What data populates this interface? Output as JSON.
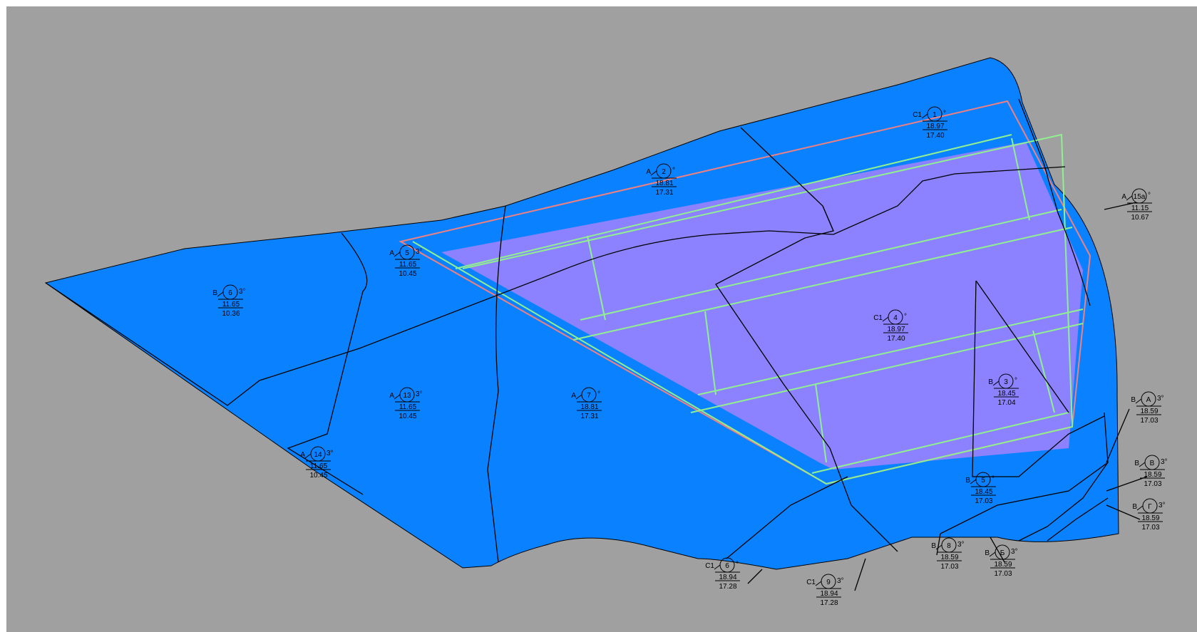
{
  "colors": {
    "background": "#a0a0a0",
    "plot_fill": "#0a82ff",
    "building_fill": "#8c82ff",
    "boundary_red": "#f08080",
    "offset_green": "#90f090",
    "line": "#000000"
  },
  "labels": [
    {
      "id": "1",
      "prefix": "С1",
      "suffix": "°",
      "elev_top": "18.97",
      "elev_bottom": "17.40"
    },
    {
      "id": "2",
      "prefix": "А",
      "suffix": "°",
      "elev_top": "18.81",
      "elev_bottom": "17.31"
    },
    {
      "id": "5",
      "prefix": "А",
      "suffix": "3°",
      "elev_top": "11.65",
      "elev_bottom": "10.45"
    },
    {
      "id": "6",
      "prefix": "В",
      "suffix": "3°",
      "elev_top": "11.65",
      "elev_bottom": "10.36"
    },
    {
      "id": "15а",
      "prefix": "А",
      "suffix": "°",
      "elev_top": "11.15",
      "elev_bottom": "10.67"
    },
    {
      "id": "4",
      "prefix": "С1",
      "suffix": "°",
      "elev_top": "18.97",
      "elev_bottom": "17.40"
    },
    {
      "id": "3",
      "prefix": "В",
      "suffix": "°",
      "elev_top": "18.45",
      "elev_bottom": "17.04"
    },
    {
      "id": "13",
      "prefix": "А",
      "suffix": "3°",
      "elev_top": "11.65",
      "elev_bottom": "10.45"
    },
    {
      "id": "7",
      "prefix": "А",
      "suffix": "°",
      "elev_top": "18.81",
      "elev_bottom": "17.31"
    },
    {
      "id": "14",
      "prefix": "А",
      "suffix": "3°",
      "elev_top": "11.65",
      "elev_bottom": "10.45"
    },
    {
      "id": "А",
      "prefix": "В",
      "suffix": "3°",
      "elev_top": "18.59",
      "elev_bottom": "17.03"
    },
    {
      "id": "В",
      "prefix": "В",
      "suffix": "3°",
      "elev_top": "18.59",
      "elev_bottom": "17.03"
    },
    {
      "id": "Г",
      "prefix": "В",
      "suffix": "3°",
      "elev_top": "18.59",
      "elev_bottom": "17.03"
    },
    {
      "id": "5",
      "prefix": "В",
      "suffix": "°",
      "elev_top": "18.45",
      "elev_bottom": "17.03"
    },
    {
      "id": "6",
      "prefix": "С1",
      "suffix": "°",
      "elev_top": "18.94",
      "elev_bottom": "17.28"
    },
    {
      "id": "9",
      "prefix": "С1",
      "suffix": "3°",
      "elev_top": "18.94",
      "elev_bottom": "17.28"
    },
    {
      "id": "8",
      "prefix": "В",
      "suffix": "3°",
      "elev_top": "18.59",
      "elev_bottom": "17.03"
    },
    {
      "id": "Б",
      "prefix": "В",
      "suffix": "3°",
      "elev_top": "18.59",
      "elev_bottom": "17.03"
    }
  ]
}
